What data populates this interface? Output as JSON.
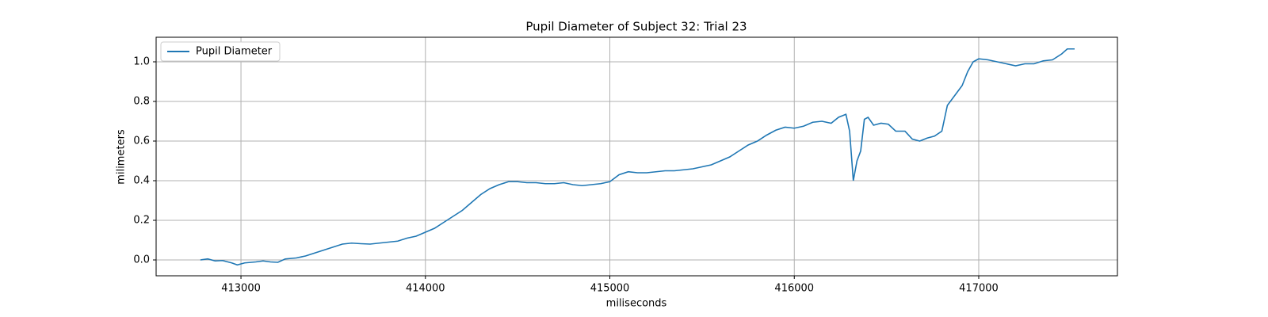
{
  "chart_data": {
    "type": "line",
    "title": "Pupil Diameter of Subject 32: Trial 23",
    "x_label": "miliseconds",
    "y_label": "milimeters",
    "x": [
      412780,
      412820,
      412860,
      412900,
      412950,
      412980,
      413020,
      413080,
      413120,
      413160,
      413200,
      413240,
      413300,
      413350,
      413400,
      413450,
      413500,
      413550,
      413600,
      413650,
      413700,
      413750,
      413800,
      413850,
      413900,
      413950,
      414000,
      414050,
      414100,
      414150,
      414200,
      414250,
      414300,
      414350,
      414400,
      414450,
      414500,
      414550,
      414600,
      414650,
      414700,
      414750,
      414800,
      414850,
      414900,
      414950,
      415000,
      415050,
      415100,
      415150,
      415200,
      415250,
      415300,
      415350,
      415400,
      415450,
      415500,
      415550,
      415600,
      415650,
      415700,
      415750,
      415800,
      415850,
      415900,
      415950,
      416000,
      416050,
      416100,
      416150,
      416200,
      416240,
      416280,
      416300,
      416320,
      416340,
      416360,
      416380,
      416400,
      416430,
      416470,
      416510,
      416550,
      416600,
      416640,
      416680,
      416720,
      416760,
      416800,
      416830,
      416870,
      416910,
      416940,
      416970,
      417000,
      417050,
      417100,
      417150,
      417200,
      417250,
      417300,
      417350,
      417400,
      417450,
      417480,
      417520
    ],
    "series": [
      {
        "name": "Pupil Diameter",
        "color": "#1f77b4",
        "values": [
          0.0,
          0.005,
          -0.005,
          -0.003,
          -0.015,
          -0.025,
          -0.015,
          -0.01,
          -0.005,
          -0.01,
          -0.012,
          0.005,
          0.01,
          0.02,
          0.035,
          0.05,
          0.065,
          0.08,
          0.085,
          0.082,
          0.08,
          0.085,
          0.09,
          0.095,
          0.11,
          0.12,
          0.14,
          0.16,
          0.19,
          0.22,
          0.25,
          0.29,
          0.33,
          0.36,
          0.38,
          0.395,
          0.395,
          0.39,
          0.39,
          0.385,
          0.385,
          0.39,
          0.38,
          0.375,
          0.38,
          0.385,
          0.395,
          0.43,
          0.445,
          0.44,
          0.44,
          0.445,
          0.45,
          0.45,
          0.455,
          0.46,
          0.47,
          0.48,
          0.5,
          0.52,
          0.55,
          0.58,
          0.6,
          0.63,
          0.655,
          0.67,
          0.665,
          0.675,
          0.695,
          0.7,
          0.69,
          0.72,
          0.735,
          0.65,
          0.4,
          0.5,
          0.55,
          0.71,
          0.72,
          0.68,
          0.69,
          0.685,
          0.65,
          0.65,
          0.61,
          0.6,
          0.615,
          0.625,
          0.65,
          0.78,
          0.83,
          0.88,
          0.95,
          1.0,
          1.015,
          1.01,
          1.0,
          0.99,
          0.98,
          0.99,
          0.99,
          1.005,
          1.01,
          1.04,
          1.065,
          1.065
        ]
      }
    ],
    "xlim": [
      412540,
      417752
    ],
    "ylim": [
      -0.08,
      1.124
    ],
    "xticks": [
      413000,
      414000,
      415000,
      416000,
      417000
    ],
    "yticks": [
      {
        "value": 0,
        "label": "0.0"
      },
      {
        "value": 0.2,
        "label": "0.2"
      },
      {
        "value": 0.4,
        "label": "0.4"
      },
      {
        "value": 0.6,
        "label": "0.6"
      },
      {
        "value": 0.8,
        "label": "0.8"
      },
      {
        "value": 1,
        "label": "1.0"
      }
    ],
    "grid": true,
    "legend": "upper left"
  }
}
